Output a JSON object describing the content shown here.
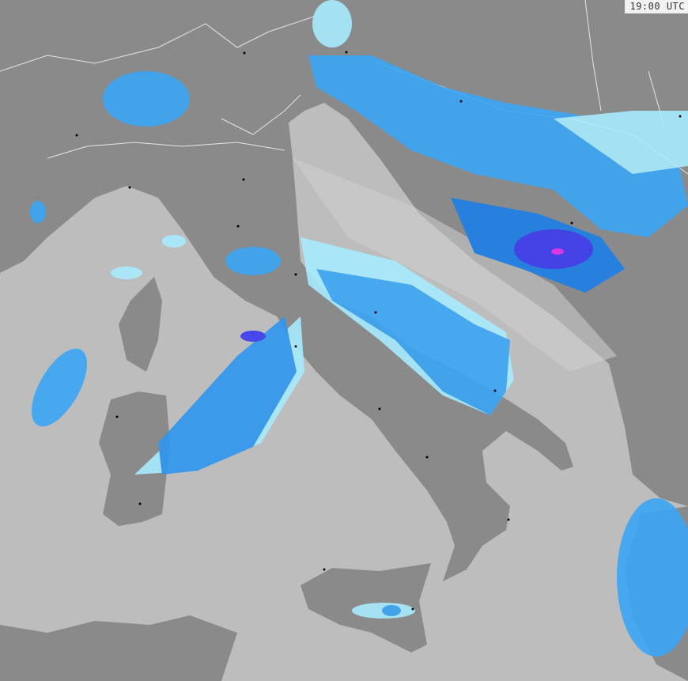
{
  "map": {
    "timestamp": "19:00 UTC",
    "colors": {
      "sea": "#bdbdbd",
      "land": "#8a8a8a",
      "border": "#e6e6e6",
      "radar_light": "#a8ecff",
      "radar_mid": "#3aa6f5",
      "radar_strong": "#1c7fe8",
      "radar_heavy": "#3a3af0",
      "radar_extreme": "#e030f0"
    }
  }
}
